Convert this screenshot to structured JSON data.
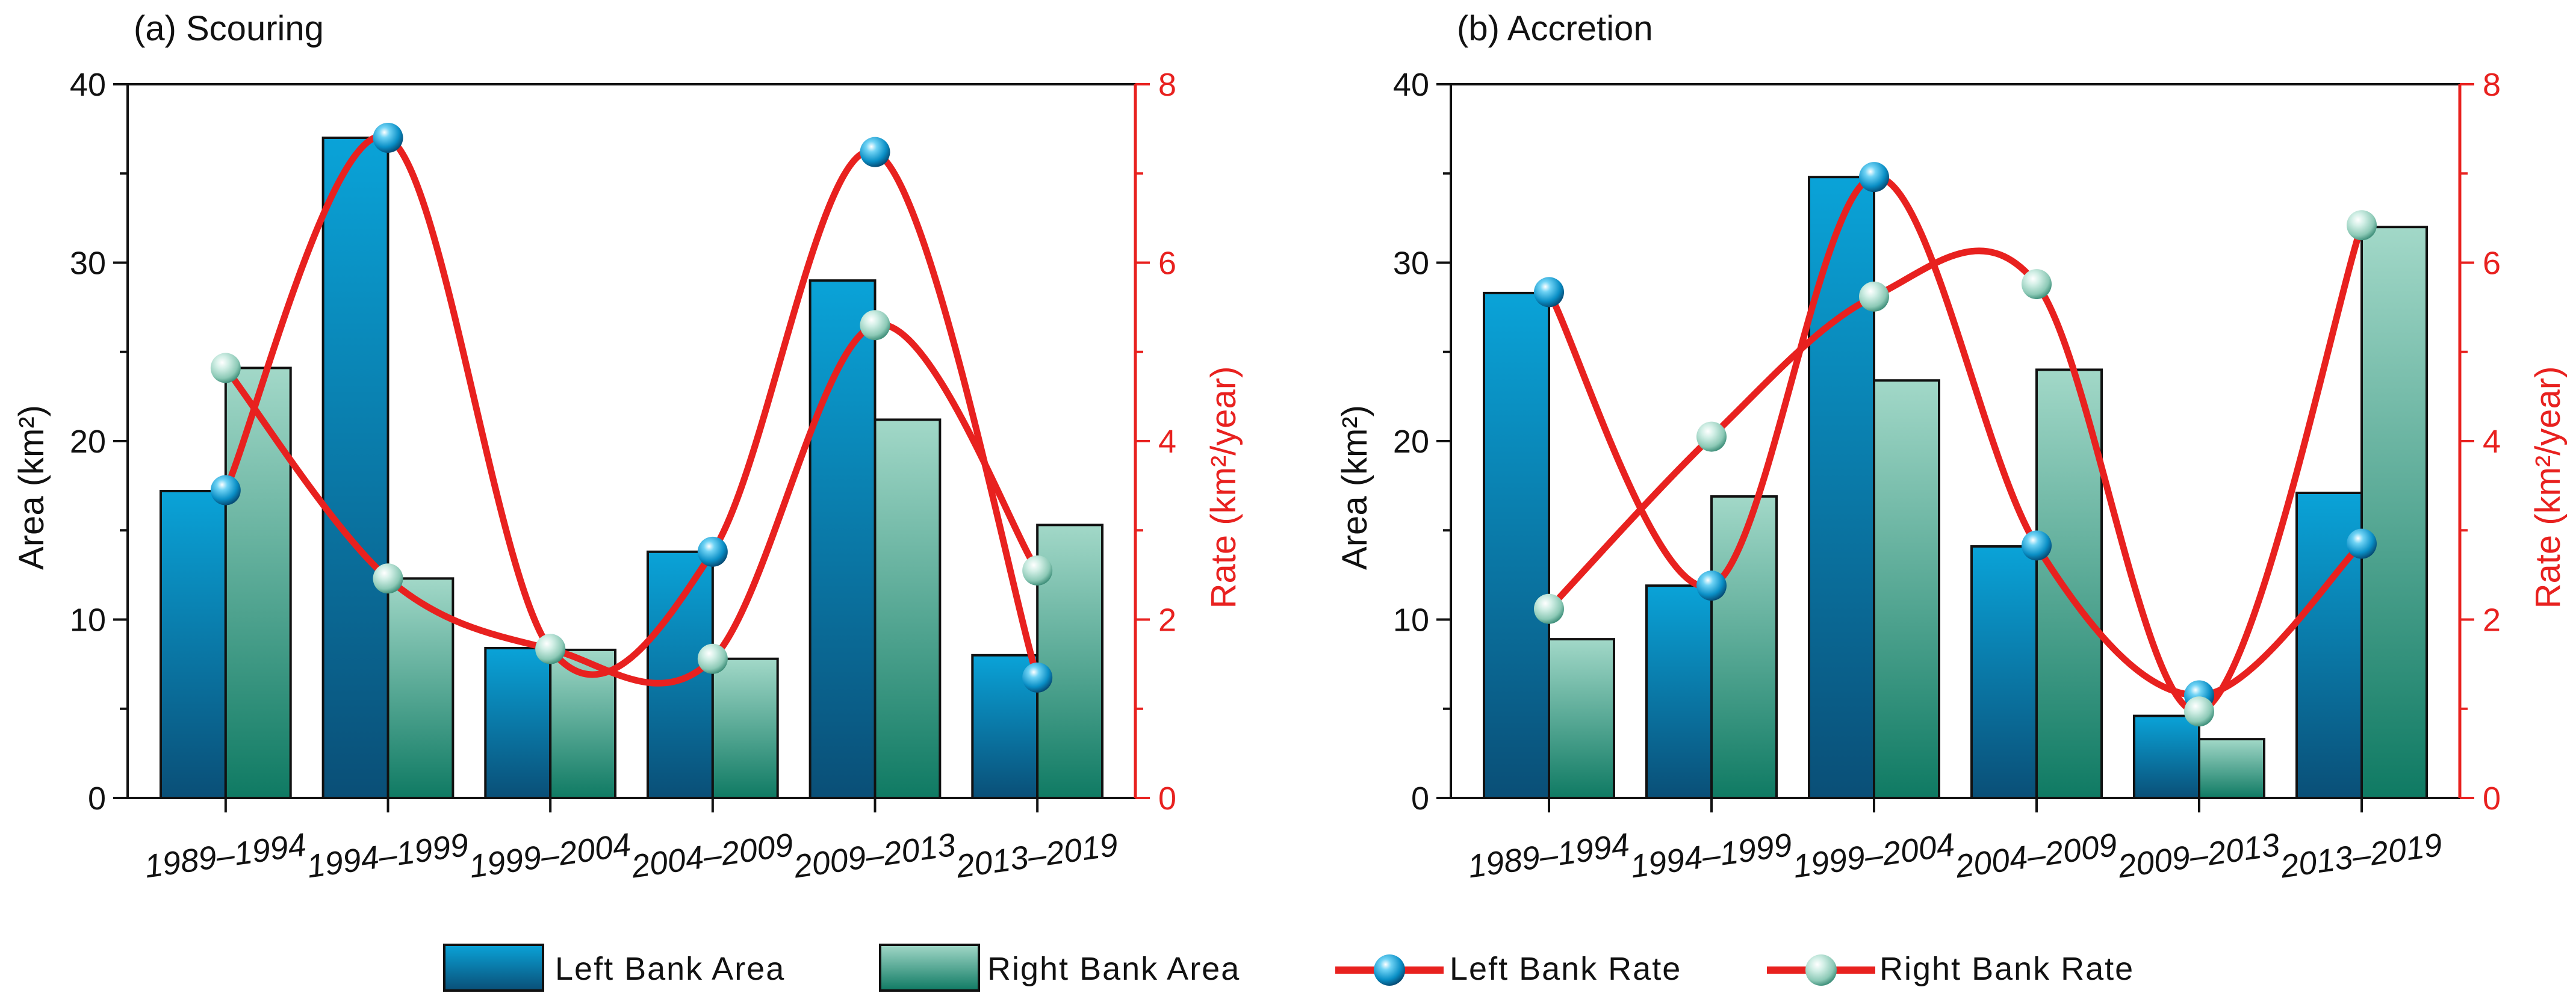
{
  "legend": {
    "left_area": "Left Bank Area",
    "right_area": "Right Bank Area",
    "left_rate": "Left Bank Rate",
    "right_rate": "Right Bank Rate"
  },
  "colors": {
    "left_bar_top": "#0aa3d8",
    "left_bar_bottom": "#0a4f77",
    "right_bar_top": "#9fd6c6",
    "right_bar_bottom": "#0f7a63",
    "rate_line": "#e8211f"
  },
  "chart_data": [
    {
      "type": "bar+line",
      "title": "(a) Scouring",
      "categories": [
        "1989–1994",
        "1994–1999",
        "1999–2004",
        "2004–2009",
        "2009–2013",
        "2013–2019"
      ],
      "ylabel": "Area (km²)",
      "y2label": "Rate (km²/year)",
      "ylim": [
        0,
        40
      ],
      "y2lim": [
        0,
        8
      ],
      "yticks": [
        0,
        10,
        20,
        30,
        40
      ],
      "y2ticks": [
        0,
        2,
        4,
        6,
        8
      ],
      "series": [
        {
          "name": "Left Bank Area",
          "kind": "bar",
          "axis": "left",
          "values": [
            17.2,
            37.0,
            8.4,
            13.8,
            29.0,
            8.0
          ]
        },
        {
          "name": "Right Bank Area",
          "kind": "bar",
          "axis": "left",
          "values": [
            24.1,
            12.3,
            8.3,
            7.8,
            21.2,
            15.3
          ]
        },
        {
          "name": "Left Bank Rate",
          "kind": "line",
          "axis": "right",
          "values": [
            3.45,
            7.4,
            1.67,
            2.76,
            7.24,
            1.35
          ]
        },
        {
          "name": "Right Bank Rate",
          "kind": "line",
          "axis": "right",
          "values": [
            4.82,
            2.46,
            1.67,
            1.56,
            5.3,
            2.55
          ]
        }
      ]
    },
    {
      "type": "bar+line",
      "title": "(b) Accretion",
      "categories": [
        "1989–1994",
        "1994–1999",
        "1999–2004",
        "2004–2009",
        "2009–2013",
        "2013–2019"
      ],
      "ylabel": "Area (km²)",
      "y2label": "Rate (km²/year)",
      "ylim": [
        0,
        40
      ],
      "y2lim": [
        0,
        8
      ],
      "yticks": [
        0,
        10,
        20,
        30,
        40
      ],
      "y2ticks": [
        0,
        2,
        4,
        6,
        8
      ],
      "series": [
        {
          "name": "Left Bank Area",
          "kind": "bar",
          "axis": "left",
          "values": [
            28.3,
            11.9,
            34.8,
            14.1,
            4.6,
            17.1
          ]
        },
        {
          "name": "Right Bank Area",
          "kind": "bar",
          "axis": "left",
          "values": [
            8.9,
            16.9,
            23.4,
            24.0,
            3.3,
            32.0
          ]
        },
        {
          "name": "Left Bank Rate",
          "kind": "line",
          "axis": "right",
          "values": [
            5.67,
            2.38,
            6.96,
            2.83,
            1.15,
            2.85
          ]
        },
        {
          "name": "Right Bank Rate",
          "kind": "line",
          "axis": "right",
          "values": [
            2.12,
            4.05,
            5.62,
            5.76,
            0.97,
            6.42
          ]
        }
      ]
    }
  ]
}
